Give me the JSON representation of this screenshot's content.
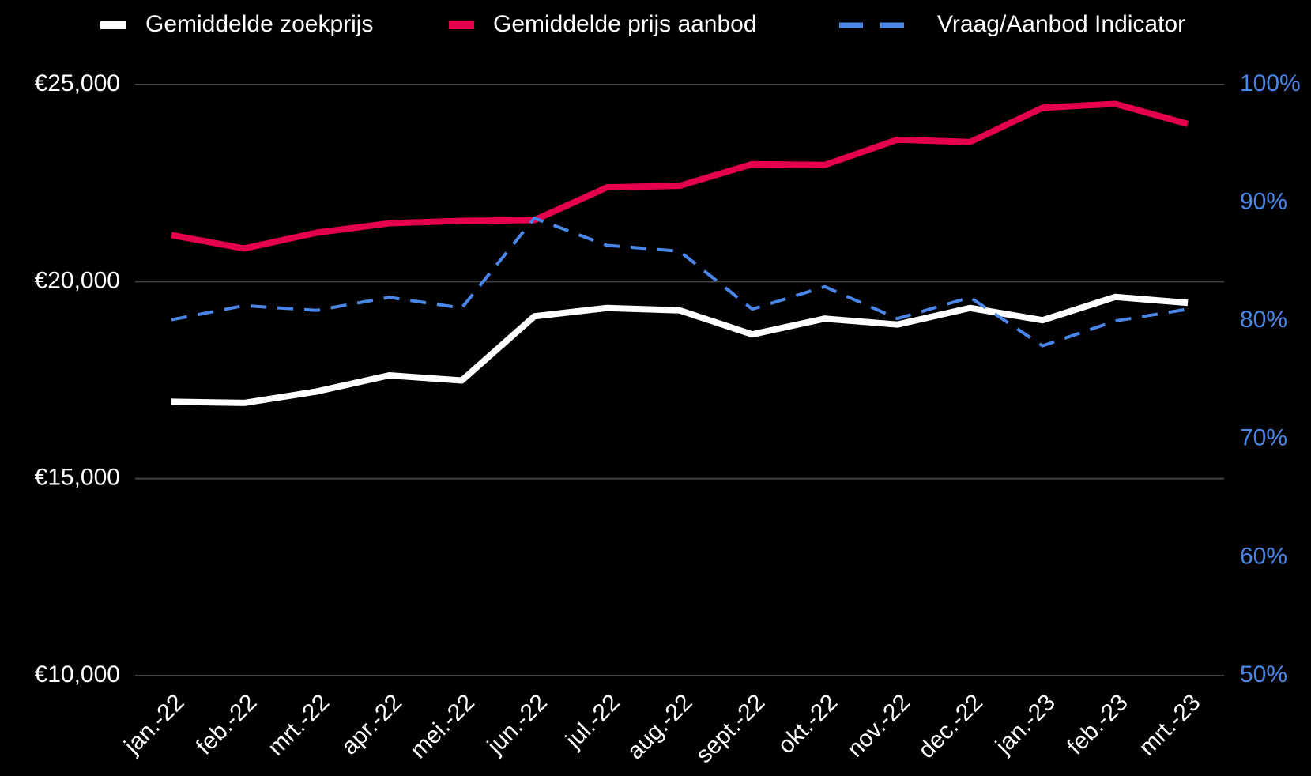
{
  "chart_data": {
    "type": "line",
    "categories": [
      "jan.-22",
      "feb.-22",
      "mrt.-22",
      "apr.-22",
      "mei.-22",
      "jun.-22",
      "jul.-22",
      "aug.-22",
      "sept.-22",
      "okt.-22",
      "nov.-22",
      "dec.-22",
      "jan.-23",
      "feb.-23",
      "mrt.-23"
    ],
    "series": [
      {
        "name": "Gemiddelde zoekprijs",
        "color": "#ffffff",
        "line_style": "solid",
        "values": [
          16950,
          16920,
          17210,
          17620,
          17490,
          19120,
          19330,
          19270,
          18660,
          19060,
          18910,
          19330,
          19020,
          19610,
          19460
        ]
      },
      {
        "name": "Gemiddelde prijs aanbod",
        "color": "#e4004f",
        "line_style": "solid",
        "values": [
          21180,
          20840,
          21240,
          21480,
          21540,
          21560,
          22390,
          22430,
          22980,
          22960,
          23600,
          23540,
          24410,
          24510,
          24000
        ]
      },
      {
        "name": "Vraag/Aanbod Indicator",
        "color": "#4a86e8",
        "line_style": "dashed",
        "axis": "y2",
        "values": [
          80.1,
          81.3,
          80.9,
          82.0,
          81.1,
          88.7,
          86.4,
          85.9,
          81.0,
          82.9,
          80.2,
          82.0,
          77.9,
          80.0,
          81.0
        ]
      }
    ],
    "ylim": [
      10000,
      25000
    ],
    "yticks": [
      {
        "value": 10000,
        "label": "€10,000"
      },
      {
        "value": 15000,
        "label": "€15,000"
      },
      {
        "value": 20000,
        "label": "€20,000"
      },
      {
        "value": 25000,
        "label": "€25,000"
      }
    ],
    "y2lim": [
      50,
      100
    ],
    "y2ticks": [
      {
        "value": 50,
        "label": "50%"
      },
      {
        "value": 60,
        "label": "60%"
      },
      {
        "value": 70,
        "label": "70%"
      },
      {
        "value": 80,
        "label": "80%"
      },
      {
        "value": 90,
        "label": "90%"
      },
      {
        "value": 100,
        "label": "100%"
      }
    ],
    "y2_color": "#4a86e8",
    "grid": true,
    "legend": "top"
  }
}
